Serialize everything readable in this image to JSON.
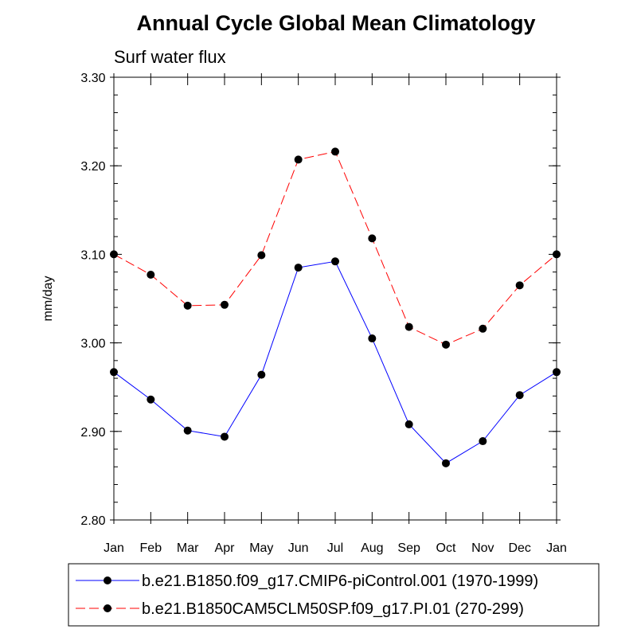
{
  "chart_data": {
    "type": "line",
    "title": "Annual Cycle Global Mean Climatology",
    "subtitle": "Surf water flux",
    "xlabel": "",
    "ylabel": "mm/day",
    "categories": [
      "Jan",
      "Feb",
      "Mar",
      "Apr",
      "May",
      "Jun",
      "Jul",
      "Aug",
      "Sep",
      "Oct",
      "Nov",
      "Dec",
      "Jan"
    ],
    "ylim": [
      2.8,
      3.3
    ],
    "yticks": [
      2.8,
      2.9,
      3.0,
      3.1,
      3.2,
      3.3
    ],
    "ytick_labels": [
      "2.80",
      "2.90",
      "3.00",
      "3.10",
      "3.20",
      "3.30"
    ],
    "legend_position": "bottom",
    "series": [
      {
        "name": "b.e21.B1850.f09_g17.CMIP6-piControl.001 (1970-1999)",
        "color": "#0000ff",
        "dash": "solid",
        "values": [
          2.967,
          2.936,
          2.901,
          2.894,
          2.964,
          3.085,
          3.092,
          3.005,
          2.908,
          2.864,
          2.889,
          2.941,
          2.967
        ]
      },
      {
        "name": "b.e21.B1850CAM5CLM50SP.f09_g17.PI.01 (270-299)",
        "color": "#ff0000",
        "dash": "dashed",
        "values": [
          3.1,
          3.077,
          3.042,
          3.043,
          3.099,
          3.207,
          3.216,
          3.118,
          3.018,
          2.998,
          3.016,
          3.065,
          3.1
        ]
      }
    ]
  }
}
